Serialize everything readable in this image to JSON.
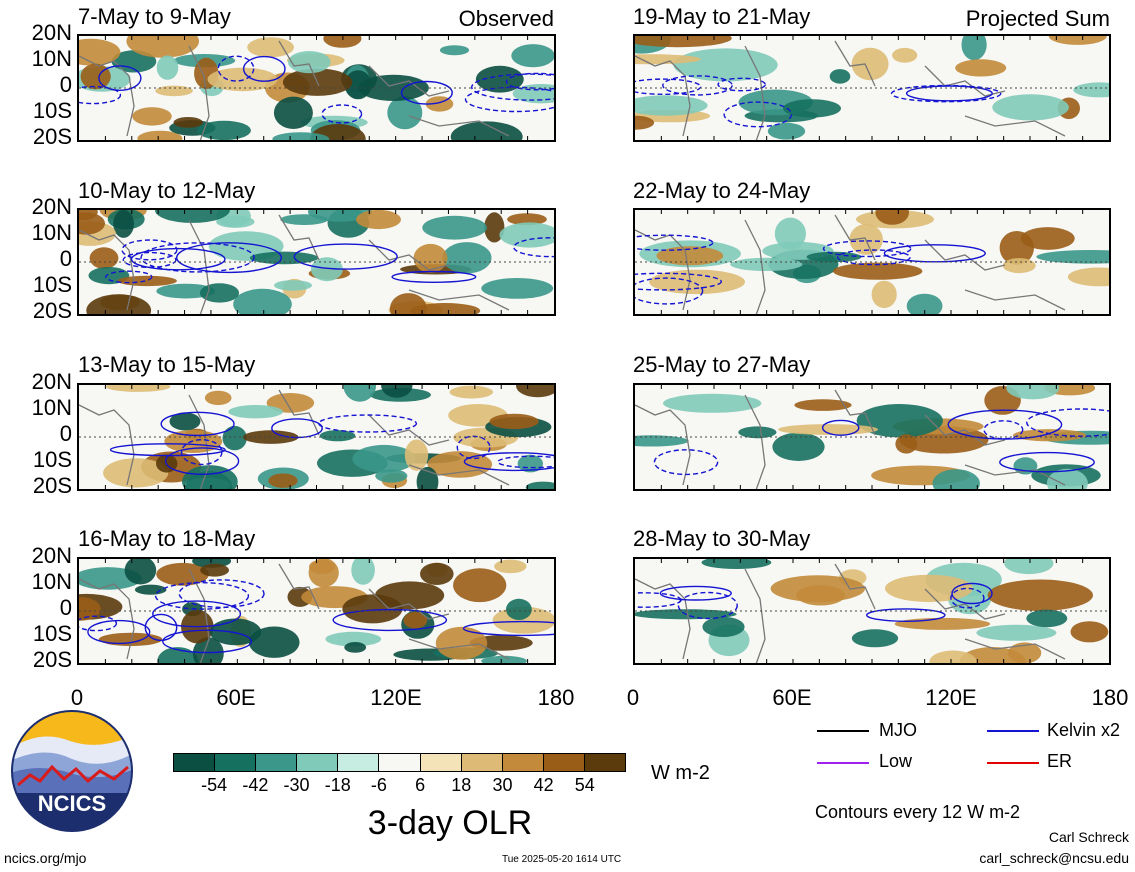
{
  "panels_left_label": "Observed",
  "panels_right_label": "Projected Sum",
  "observed": [
    {
      "title": "7-May to 9-May"
    },
    {
      "title": "10-May to 12-May"
    },
    {
      "title": "13-May to 15-May"
    },
    {
      "title": "16-May to 18-May"
    }
  ],
  "projected": [
    {
      "title": "19-May to 21-May"
    },
    {
      "title": "22-May to 24-May"
    },
    {
      "title": "25-May to 27-May"
    },
    {
      "title": "28-May to 30-May"
    }
  ],
  "lat_labels": [
    "20N",
    "10N",
    "0",
    "10S",
    "20S"
  ],
  "lon_labels": [
    "0",
    "60E",
    "120E",
    "180"
  ],
  "colorbar": {
    "title": "3-day OLR",
    "units": "W m-2",
    "ticks": [
      "-54",
      "-42",
      "-30",
      "-18",
      "-6",
      "6",
      "18",
      "30",
      "42",
      "54"
    ],
    "colors": [
      "#0b4f42",
      "#16705f",
      "#3a978a",
      "#7fcab9",
      "#c7ece1",
      "#f7f7f4",
      "#f4e2b8",
      "#ddbb76",
      "#c28a3a",
      "#9a5d17",
      "#5b3a0c"
    ]
  },
  "legend": {
    "items": [
      {
        "label": "MJO",
        "color": "#000000"
      },
      {
        "label": "Kelvin x2",
        "color": "#1414d2"
      },
      {
        "label": "Low",
        "color": "#a020f0"
      },
      {
        "label": "ER",
        "color": "#e00000"
      }
    ],
    "note": "Contours every 12 W m-2"
  },
  "footer": {
    "site": "ncics.org/mjo",
    "timestamp": "Tue 2025-05-20 1614 UTC",
    "author": "Carl Schreck",
    "email": "carl_schreck@ncsu.edu",
    "logo_text": "NCICS"
  }
}
